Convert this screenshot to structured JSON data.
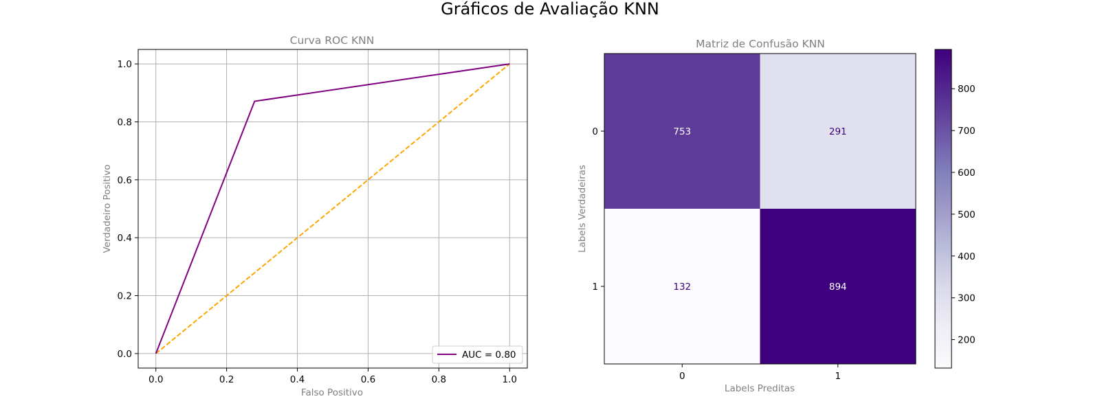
{
  "figure": {
    "title": "Gráficos de Avaliação KNN"
  },
  "chart_data": [
    {
      "type": "line",
      "title": "Curva ROC KNN",
      "xlabel": "Falso Positivo",
      "ylabel": "Verdadeiro Positivo",
      "xlim": [
        -0.05,
        1.05
      ],
      "ylim": [
        -0.05,
        1.05
      ],
      "xticks": [
        0.0,
        0.2,
        0.4,
        0.6,
        0.8,
        1.0
      ],
      "yticks": [
        0.0,
        0.2,
        0.4,
        0.6,
        0.8,
        1.0
      ],
      "grid": true,
      "legend": "lower-right",
      "series": [
        {
          "name": "AUC = 0.80",
          "color": "#800080",
          "style": "solid",
          "x": [
            0.0,
            0.279,
            1.0
          ],
          "y": [
            0.0,
            0.871,
            1.0
          ]
        },
        {
          "color": "#FFA500",
          "style": "dashed",
          "x": [
            0.0,
            1.0
          ],
          "y": [
            0.0,
            1.0
          ]
        }
      ]
    },
    {
      "type": "heatmap",
      "title": "Matriz de Confusão KNN",
      "xlabel": "Labels Preditas",
      "ylabel": "Labels Verdadeiras",
      "x_categories": [
        "0",
        "1"
      ],
      "y_categories": [
        "0",
        "1"
      ],
      "values": [
        [
          753,
          291
        ],
        [
          132,
          894
        ]
      ],
      "colormap": "Purples",
      "colorbar": {
        "range": [
          132,
          894
        ],
        "ticks": [
          200,
          300,
          400,
          500,
          600,
          700,
          800
        ]
      }
    }
  ]
}
